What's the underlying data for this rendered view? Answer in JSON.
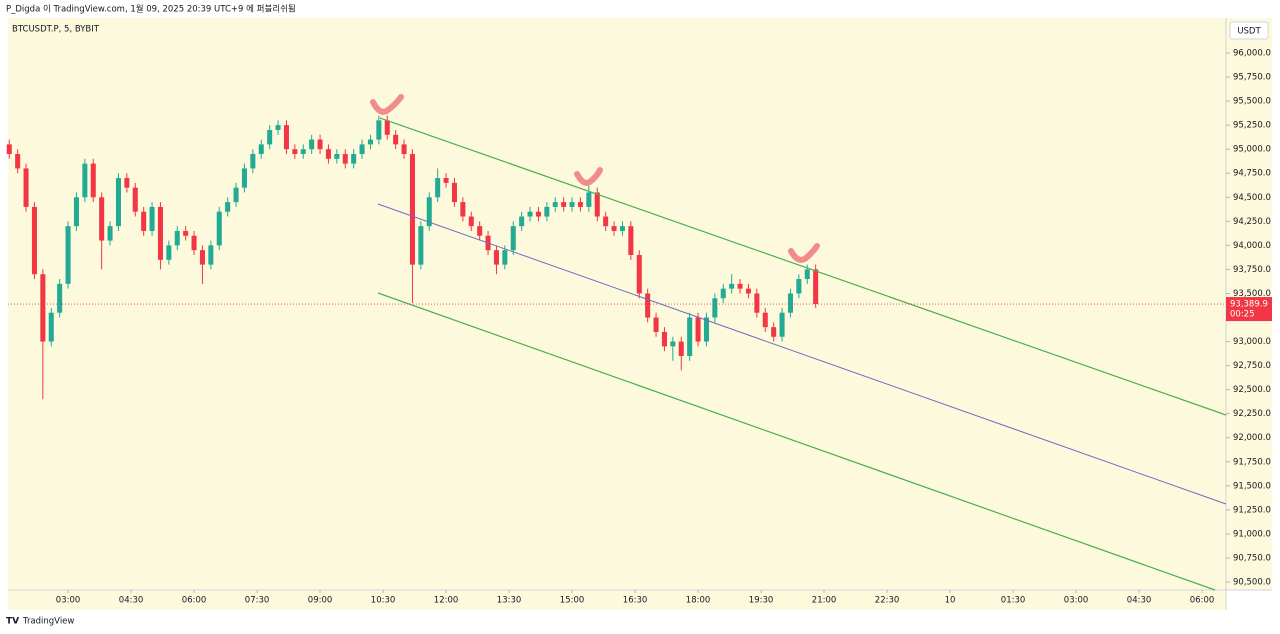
{
  "header": {
    "published": "P_Digda 이 TradingView.com, 1월 09, 2025 20:39 UTC+9 에 퍼블리쉬됨",
    "symbol": "BTCUSDT.P, 5, BYBIT",
    "currency": "USDT"
  },
  "footer": {
    "brand": "TradingView"
  },
  "chart_data": {
    "type": "candlestick",
    "up_color": "#22ab94",
    "down_color": "#f23645",
    "xlim": [
      1.57,
      30.57
    ],
    "ylim": [
      90417,
      96364
    ],
    "xticks": [
      {
        "value": 3,
        "label": "03:00"
      },
      {
        "value": 4.5,
        "label": "04:30"
      },
      {
        "value": 6,
        "label": "06:00"
      },
      {
        "value": 7.5,
        "label": "07:30"
      },
      {
        "value": 9,
        "label": "09:00"
      },
      {
        "value": 10.5,
        "label": "10:30"
      },
      {
        "value": 12,
        "label": "12:00"
      },
      {
        "value": 13.5,
        "label": "13:30"
      },
      {
        "value": 15,
        "label": "15:00"
      },
      {
        "value": 16.5,
        "label": "16:30"
      },
      {
        "value": 18,
        "label": "18:00"
      },
      {
        "value": 19.5,
        "label": "19:30"
      },
      {
        "value": 21,
        "label": "21:00"
      },
      {
        "value": 22.5,
        "label": "22:30"
      },
      {
        "value": 24,
        "label": "10"
      },
      {
        "value": 25.5,
        "label": "01:30"
      },
      {
        "value": 27,
        "label": "03:00"
      },
      {
        "value": 28.5,
        "label": "04:30"
      },
      {
        "value": 30,
        "label": "06:00"
      }
    ],
    "yticks": [
      {
        "value": 96000,
        "label": "96,000.0"
      },
      {
        "value": 95750,
        "label": "95,750.0"
      },
      {
        "value": 95500,
        "label": "95,500.0"
      },
      {
        "value": 95250,
        "label": "95,250.0"
      },
      {
        "value": 95000,
        "label": "95,000.0"
      },
      {
        "value": 94750,
        "label": "94,750.0"
      },
      {
        "value": 94500,
        "label": "94,500.0"
      },
      {
        "value": 94250,
        "label": "94,250.0"
      },
      {
        "value": 94000,
        "label": "94,000.0"
      },
      {
        "value": 93750,
        "label": "93,750.0"
      },
      {
        "value": 93500,
        "label": "93,500.0"
      },
      {
        "value": 93250,
        "label": "93,250.0"
      },
      {
        "value": 93000,
        "label": "93,000.0"
      },
      {
        "value": 92750,
        "label": "92,750.0"
      },
      {
        "value": 92500,
        "label": "92,500.0"
      },
      {
        "value": 92250,
        "label": "92,250.0"
      },
      {
        "value": 92000,
        "label": "92,000.0"
      },
      {
        "value": 91750,
        "label": "91,750.0"
      },
      {
        "value": 91500,
        "label": "91,500.0"
      },
      {
        "value": 91250,
        "label": "91,250.0"
      },
      {
        "value": 91000,
        "label": "91,000.0"
      },
      {
        "value": 90750,
        "label": "90,750.0"
      },
      {
        "value": 90500,
        "label": "90,500.0"
      }
    ],
    "last_price": {
      "value": 93389.9,
      "label": "93,389.9"
    },
    "countdown": "00:25",
    "x": [
      1.6,
      1.8,
      2.0,
      2.2,
      2.4,
      2.6,
      2.8,
      3.0,
      3.2,
      3.4,
      3.6,
      3.8,
      4.0,
      4.2,
      4.4,
      4.6,
      4.8,
      5.0,
      5.2,
      5.4,
      5.6,
      5.8,
      6.0,
      6.2,
      6.4,
      6.6,
      6.8,
      7.0,
      7.2,
      7.4,
      7.6,
      7.8,
      8.0,
      8.2,
      8.4,
      8.6,
      8.8,
      9.0,
      9.2,
      9.4,
      9.6,
      9.8,
      10.0,
      10.2,
      10.4,
      10.6,
      10.8,
      11.0,
      11.2,
      11.4,
      11.6,
      11.8,
      12.0,
      12.2,
      12.4,
      12.6,
      12.8,
      13.0,
      13.2,
      13.4,
      13.6,
      13.8,
      14.0,
      14.2,
      14.4,
      14.6,
      14.8,
      15.0,
      15.2,
      15.4,
      15.6,
      15.8,
      16.0,
      16.2,
      16.4,
      16.6,
      16.8,
      17.0,
      17.2,
      17.4,
      17.6,
      17.8,
      18.0,
      18.2,
      18.4,
      18.6,
      18.8,
      19.0,
      19.2,
      19.4,
      19.6,
      19.8,
      20.0,
      20.2,
      20.4,
      20.6,
      20.8
    ],
    "open": [
      95050,
      94950,
      94800,
      94400,
      93700,
      93000,
      93300,
      93600,
      94200,
      94500,
      94850,
      94500,
      94050,
      94200,
      94700,
      94600,
      94350,
      94150,
      94400,
      93850,
      94000,
      94150,
      94100,
      93950,
      93800,
      94000,
      94350,
      94450,
      94600,
      94800,
      94950,
      95050,
      95200,
      95250,
      95000,
      94950,
      95000,
      95100,
      95000,
      94900,
      94950,
      94850,
      94950,
      95050,
      95100,
      95300,
      95150,
      95050,
      94950,
      93800,
      94200,
      94500,
      94700,
      94650,
      94450,
      94300,
      94200,
      94100,
      93950,
      93800,
      93950,
      94200,
      94300,
      94350,
      94300,
      94400,
      94450,
      94400,
      94450,
      94400,
      94550,
      94300,
      94200,
      94150,
      94200,
      93900,
      93500,
      93250,
      93100,
      92950,
      93000,
      92850,
      93250,
      93000,
      93250,
      93450,
      93550,
      93600,
      93550,
      93500,
      93300,
      93150,
      93050,
      93300,
      93500,
      93650,
      93750
    ],
    "high": [
      95100,
      95000,
      94850,
      94450,
      93750,
      93350,
      93650,
      94250,
      94550,
      94900,
      94900,
      94550,
      94250,
      94750,
      94750,
      94650,
      94400,
      94450,
      94450,
      94050,
      94200,
      94200,
      94150,
      94000,
      94050,
      94400,
      94500,
      94650,
      94850,
      95000,
      95100,
      95250,
      95300,
      95300,
      95050,
      95050,
      95150,
      95150,
      95050,
      95000,
      95000,
      95000,
      95100,
      95150,
      95350,
      95350,
      95200,
      95100,
      95000,
      94250,
      94550,
      94800,
      94750,
      94700,
      94500,
      94350,
      94250,
      94150,
      94000,
      94000,
      94250,
      94350,
      94400,
      94400,
      94450,
      94500,
      94500,
      94500,
      94500,
      94620,
      94600,
      94350,
      94250,
      94250,
      94250,
      93950,
      93550,
      93300,
      93150,
      93050,
      93050,
      93300,
      93300,
      93300,
      93500,
      93600,
      93700,
      93650,
      93600,
      93550,
      93350,
      93200,
      93350,
      93550,
      93700,
      93800,
      93800
    ],
    "low": [
      94900,
      94750,
      94350,
      93650,
      92400,
      92950,
      93250,
      93550,
      94150,
      94450,
      94450,
      93750,
      94000,
      94150,
      94550,
      94300,
      94100,
      94100,
      93750,
      93800,
      93950,
      94050,
      93900,
      93600,
      93750,
      93950,
      94300,
      94400,
      94550,
      94750,
      94900,
      95000,
      95150,
      94950,
      94900,
      94900,
      94950,
      94950,
      94850,
      94850,
      94800,
      94800,
      94900,
      95000,
      95050,
      95100,
      95000,
      94900,
      93400,
      93750,
      94150,
      94450,
      94600,
      94400,
      94250,
      94150,
      94050,
      93900,
      93700,
      93750,
      93900,
      94150,
      94250,
      94250,
      94250,
      94350,
      94350,
      94350,
      94350,
      94350,
      94250,
      94150,
      94100,
      94100,
      93850,
      93450,
      93200,
      93050,
      92900,
      92800,
      92700,
      92800,
      92950,
      92950,
      93200,
      93400,
      93500,
      93500,
      93450,
      93250,
      93100,
      93000,
      93000,
      93250,
      93450,
      93600,
      93350
    ],
    "close": [
      94950,
      94800,
      94400,
      93700,
      93000,
      93300,
      93600,
      94200,
      94500,
      94850,
      94500,
      94050,
      94200,
      94700,
      94600,
      94350,
      94150,
      94400,
      93850,
      94000,
      94150,
      94100,
      93950,
      93800,
      94000,
      94350,
      94450,
      94600,
      94800,
      94950,
      95050,
      95200,
      95250,
      95000,
      94950,
      95000,
      95100,
      95000,
      94900,
      94950,
      94850,
      94950,
      95050,
      95100,
      95300,
      95150,
      95050,
      94950,
      93800,
      94200,
      94500,
      94700,
      94650,
      94450,
      94300,
      94200,
      94100,
      93950,
      93800,
      93950,
      94200,
      94300,
      94350,
      94300,
      94400,
      94450,
      94400,
      94450,
      94400,
      94550,
      94300,
      94200,
      94150,
      94200,
      93900,
      93500,
      93250,
      93100,
      92950,
      93000,
      92850,
      93250,
      93000,
      93250,
      93450,
      93550,
      93600,
      93550,
      93500,
      93300,
      93150,
      93050,
      93300,
      93500,
      93650,
      93750,
      93390
    ]
  }
}
